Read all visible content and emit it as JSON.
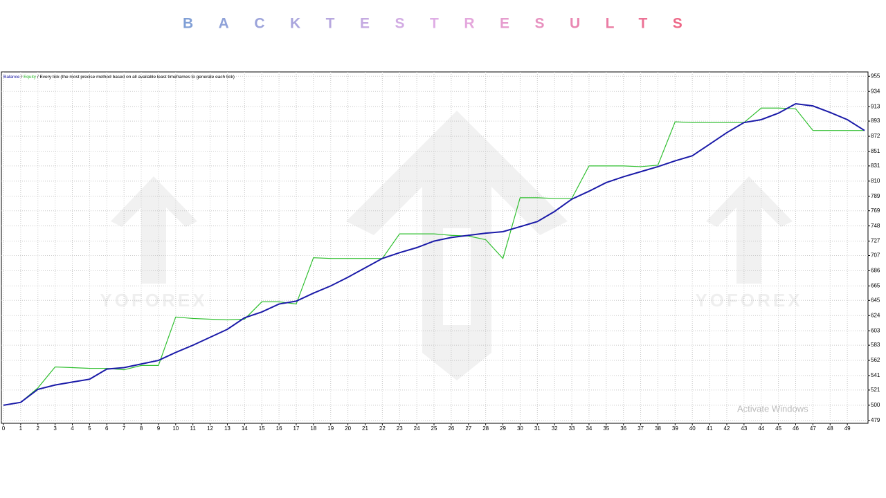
{
  "chart_data": {
    "type": "line",
    "title": "BACKTESTRESULTS",
    "annotation": "Every tick (the most precise method based on all available least timeframes to generate each tick)",
    "legend_separator": "/",
    "watermark": "YOFOREX",
    "overlay_text": "Activate Windows",
    "x": [
      0,
      1,
      2,
      3,
      4,
      5,
      6,
      7,
      8,
      9,
      10,
      11,
      12,
      13,
      14,
      15,
      16,
      17,
      18,
      19,
      20,
      21,
      22,
      23,
      24,
      25,
      26,
      27,
      28,
      29,
      30,
      31,
      32,
      33,
      34,
      35,
      36,
      37,
      38,
      39,
      40,
      41,
      42,
      43,
      44,
      45,
      46,
      47,
      48,
      49,
      50
    ],
    "series": [
      {
        "name": "Balance",
        "color": "#1a1aa8",
        "values": [
          500,
          504,
          522,
          528,
          532,
          536,
          550,
          552,
          557,
          562,
          573,
          583,
          594,
          605,
          621,
          629,
          640,
          644,
          655,
          665,
          677,
          690,
          703,
          711,
          718,
          727,
          732,
          735,
          738,
          740,
          747,
          754,
          768,
          785,
          796,
          808,
          816,
          823,
          830,
          838,
          845,
          861,
          877,
          891,
          895,
          904,
          917,
          914,
          905,
          895,
          880
        ]
      },
      {
        "name": "Equity",
        "color": "#2fbf2f",
        "values": [
          500,
          504,
          524,
          553,
          552,
          551,
          551,
          549,
          555,
          555,
          622,
          620,
          619,
          618,
          619,
          643,
          643,
          640,
          704,
          703,
          703,
          703,
          703,
          737,
          737,
          737,
          735,
          734,
          729,
          703,
          787,
          787,
          786,
          786,
          831,
          831,
          831,
          830,
          832,
          892,
          891,
          891,
          891,
          891,
          911,
          911,
          910,
          880,
          880,
          880,
          880
        ]
      }
    ],
    "xlim": [
      0,
      50.2
    ],
    "xticks": [
      0,
      1,
      2,
      3,
      4,
      5,
      6,
      7,
      8,
      9,
      10,
      11,
      12,
      13,
      14,
      15,
      16,
      17,
      18,
      19,
      20,
      21,
      22,
      23,
      24,
      25,
      26,
      27,
      28,
      29,
      30,
      31,
      32,
      33,
      34,
      35,
      36,
      37,
      38,
      39,
      40,
      41,
      42,
      43,
      44,
      45,
      46,
      47,
      48,
      49
    ],
    "ylim": [
      475,
      961
    ],
    "yticks": [
      479,
      500,
      521,
      541,
      562,
      583,
      603,
      624,
      645,
      665,
      686,
      707,
      727,
      748,
      769,
      789,
      810,
      831,
      851,
      872,
      893,
      913,
      934,
      955
    ],
    "grid": true
  }
}
